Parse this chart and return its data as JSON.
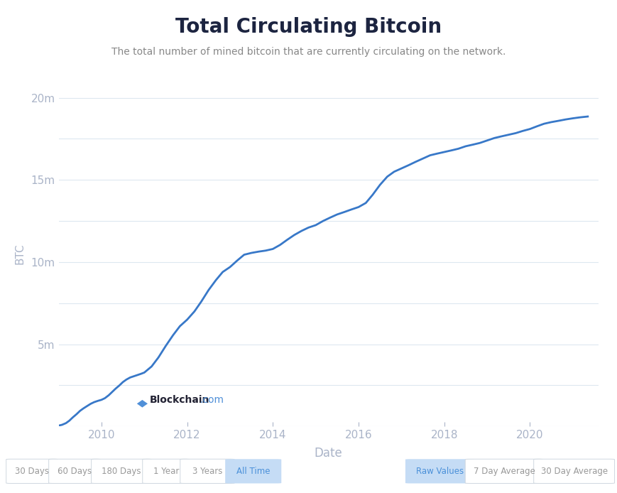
{
  "title": "Total Circulating Bitcoin",
  "subtitle": "The total number of mined bitcoin that are currently circulating on the network.",
  "xlabel": "Date",
  "ylabel": "BTC",
  "line_color": "#3878c8",
  "line_width": 2.0,
  "background_color": "#ffffff",
  "grid_color": "#dde8f0",
  "title_color": "#1c2440",
  "subtitle_color": "#888888",
  "tick_label_color": "#aab4c8",
  "yticks": [
    0,
    2500000,
    5000000,
    7500000,
    10000000,
    12500000,
    15000000,
    17500000,
    20000000
  ],
  "ytick_labels": [
    "",
    "",
    "5m",
    "",
    "10m",
    "",
    "15m",
    "",
    "20m"
  ],
  "xtick_years": [
    2010,
    2012,
    2014,
    2016,
    2018,
    2020
  ],
  "xlim_start": 2009.0,
  "xlim_end": 2021.6,
  "ylim_min": 0,
  "ylim_max": 21000000,
  "data_x": [
    2009.0,
    2009.08,
    2009.17,
    2009.25,
    2009.33,
    2009.42,
    2009.5,
    2009.58,
    2009.67,
    2009.75,
    2009.83,
    2009.92,
    2010.0,
    2010.08,
    2010.17,
    2010.25,
    2010.33,
    2010.42,
    2010.5,
    2010.58,
    2010.67,
    2010.75,
    2010.83,
    2010.92,
    2011.0,
    2011.17,
    2011.33,
    2011.5,
    2011.67,
    2011.83,
    2012.0,
    2012.17,
    2012.33,
    2012.5,
    2012.67,
    2012.83,
    2013.0,
    2013.17,
    2013.33,
    2013.5,
    2013.67,
    2013.83,
    2014.0,
    2014.17,
    2014.33,
    2014.5,
    2014.67,
    2014.83,
    2015.0,
    2015.17,
    2015.33,
    2015.5,
    2015.67,
    2015.83,
    2016.0,
    2016.17,
    2016.33,
    2016.5,
    2016.67,
    2016.83,
    2017.0,
    2017.17,
    2017.33,
    2017.5,
    2017.67,
    2017.83,
    2018.0,
    2018.17,
    2018.33,
    2018.5,
    2018.67,
    2018.83,
    2019.0,
    2019.17,
    2019.33,
    2019.5,
    2019.67,
    2019.83,
    2020.0,
    2020.17,
    2020.33,
    2020.5,
    2020.67,
    2020.83,
    2021.0,
    2021.17,
    2021.35
  ],
  "data_y": [
    50000,
    100000,
    200000,
    350000,
    550000,
    750000,
    950000,
    1100000,
    1250000,
    1380000,
    1480000,
    1560000,
    1620000,
    1720000,
    1900000,
    2100000,
    2300000,
    2500000,
    2700000,
    2850000,
    2980000,
    3050000,
    3120000,
    3200000,
    3280000,
    3650000,
    4200000,
    4900000,
    5550000,
    6100000,
    6500000,
    7000000,
    7600000,
    8300000,
    8900000,
    9400000,
    9700000,
    10100000,
    10450000,
    10560000,
    10640000,
    10700000,
    10800000,
    11050000,
    11350000,
    11650000,
    11900000,
    12100000,
    12250000,
    12500000,
    12700000,
    12900000,
    13050000,
    13200000,
    13350000,
    13600000,
    14100000,
    14700000,
    15200000,
    15500000,
    15700000,
    15900000,
    16100000,
    16300000,
    16500000,
    16600000,
    16700000,
    16800000,
    16900000,
    17050000,
    17150000,
    17250000,
    17400000,
    17550000,
    17650000,
    17750000,
    17850000,
    17980000,
    18100000,
    18270000,
    18420000,
    18520000,
    18600000,
    18680000,
    18750000,
    18810000,
    18860000
  ],
  "watermark_text_bold": "Blockchain",
  "watermark_text_light": ".com",
  "bottom_buttons_left": [
    "30 Days",
    "60 Days",
    "180 Days",
    "1 Year",
    "3 Years",
    "All Time"
  ],
  "bottom_buttons_right": [
    "Raw Values",
    "7 Day Average",
    "30 Day Average"
  ],
  "active_left": "All Time",
  "active_right": "Raw Values",
  "button_active_bg": "#c5dcf5",
  "button_active_text": "#4a90d9",
  "button_inactive_bg": "#ffffff",
  "button_border_color": "#d0d8e0",
  "button_inactive_text": "#999999"
}
